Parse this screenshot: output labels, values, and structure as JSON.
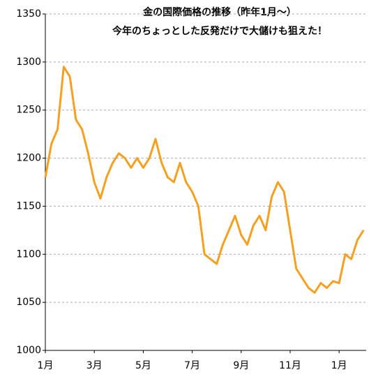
{
  "chart_data": {
    "type": "line",
    "title": [
      "金の国際価格の推移（昨年1月～）",
      "今年のちょっとした反発だけで大儲けも狙えた！"
    ],
    "categories": [
      "1月",
      null,
      null,
      null,
      null,
      null,
      null,
      null,
      "3月",
      null,
      null,
      null,
      null,
      null,
      null,
      null,
      "5月",
      null,
      null,
      null,
      null,
      null,
      null,
      null,
      "7月",
      null,
      null,
      null,
      null,
      null,
      null,
      null,
      "9月",
      null,
      null,
      null,
      null,
      null,
      null,
      null,
      "11月",
      null,
      null,
      null,
      null,
      null,
      null,
      null,
      "1月",
      null,
      null,
      null,
      null
    ],
    "series": [
      {
        "color": "#f5a020",
        "values": [
          1180,
          1215,
          1230,
          1295,
          1285,
          1240,
          1230,
          1205,
          1175,
          1158,
          1180,
          1195,
          1205,
          1200,
          1190,
          1200,
          1190,
          1200,
          1220,
          1195,
          1180,
          1175,
          1195,
          1175,
          1165,
          1150,
          1100,
          1095,
          1090,
          1110,
          1125,
          1140,
          1120,
          1110,
          1130,
          1140,
          1125,
          1160,
          1175,
          1165,
          1125,
          1085,
          1075,
          1065,
          1060,
          1070,
          1065,
          1072,
          1070,
          1100,
          1095,
          1115,
          1125
        ]
      }
    ],
    "ylim": [
      1000,
      1350
    ],
    "yticks": [
      1000,
      1050,
      1100,
      1150,
      1200,
      1250,
      1300,
      1350
    ],
    "grid": true
  }
}
